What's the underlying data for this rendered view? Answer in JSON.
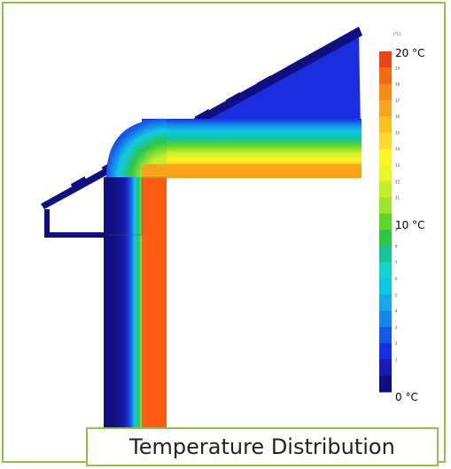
{
  "caption": "Temperature Distribution",
  "unit_label": "[°C]",
  "scale": {
    "max_label": "20 °C",
    "mid_label": "10 °C",
    "min_label": "0 °C",
    "small_ticks": [
      "19",
      "18",
      "17",
      "16",
      "15",
      "14",
      "13",
      "12",
      "11",
      "9",
      "8",
      "7",
      "6",
      "5",
      "4",
      "3",
      "2",
      "1"
    ],
    "colors": [
      "#e8461a",
      "#f26b12",
      "#f6891a",
      "#f9a41a",
      "#fbc01d",
      "#fdd82a",
      "#fff22a",
      "#e8f52a",
      "#c6ef2a",
      "#9be52a",
      "#5ed72a",
      "#2ec649",
      "#14c59c",
      "#14d3cc",
      "#10c8e6",
      "#14a8e8",
      "#1587e8",
      "#1558e8",
      "#1a2ee0",
      "#1a1ab4",
      "#0f0f82"
    ]
  },
  "colors": {
    "cold": "#0f0f82",
    "brick": "#ff5a12",
    "frame": "#8cc152"
  }
}
